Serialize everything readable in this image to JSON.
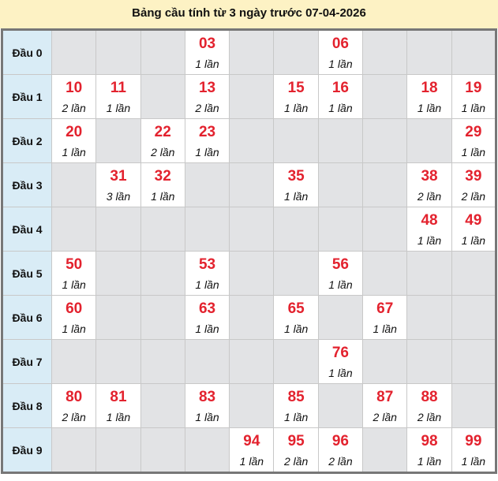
{
  "title": "Bảng cầu tính từ 3 ngày trước 07-04-2026",
  "colors": {
    "number": "#e3222e",
    "label_bg": "#d9ecf6",
    "empty_bg": "#e2e3e5",
    "header_bg": "#fdf2c4"
  },
  "rows": [
    {
      "label": "Đầu 0",
      "cells": [
        null,
        null,
        null,
        {
          "num": "03",
          "count": "1 lần"
        },
        null,
        null,
        {
          "num": "06",
          "count": "1 lần"
        },
        null,
        null,
        null
      ]
    },
    {
      "label": "Đầu 1",
      "cells": [
        {
          "num": "10",
          "count": "2 lần"
        },
        {
          "num": "11",
          "count": "1 lần"
        },
        null,
        {
          "num": "13",
          "count": "2 lần"
        },
        null,
        {
          "num": "15",
          "count": "1 lần"
        },
        {
          "num": "16",
          "count": "1 lần"
        },
        null,
        {
          "num": "18",
          "count": "1 lần"
        },
        {
          "num": "19",
          "count": "1 lần"
        }
      ]
    },
    {
      "label": "Đầu 2",
      "cells": [
        {
          "num": "20",
          "count": "1 lần"
        },
        null,
        {
          "num": "22",
          "count": "2 lần"
        },
        {
          "num": "23",
          "count": "1 lần"
        },
        null,
        null,
        null,
        null,
        null,
        {
          "num": "29",
          "count": "1 lần"
        }
      ]
    },
    {
      "label": "Đầu 3",
      "cells": [
        null,
        {
          "num": "31",
          "count": "3 lần"
        },
        {
          "num": "32",
          "count": "1 lần"
        },
        null,
        null,
        {
          "num": "35",
          "count": "1 lần"
        },
        null,
        null,
        {
          "num": "38",
          "count": "2 lần"
        },
        {
          "num": "39",
          "count": "2 lần"
        }
      ]
    },
    {
      "label": "Đầu 4",
      "cells": [
        null,
        null,
        null,
        null,
        null,
        null,
        null,
        null,
        {
          "num": "48",
          "count": "1 lần"
        },
        {
          "num": "49",
          "count": "1 lần"
        }
      ]
    },
    {
      "label": "Đầu 5",
      "cells": [
        {
          "num": "50",
          "count": "1 lần"
        },
        null,
        null,
        {
          "num": "53",
          "count": "1 lần"
        },
        null,
        null,
        {
          "num": "56",
          "count": "1 lần"
        },
        null,
        null,
        null
      ]
    },
    {
      "label": "Đầu 6",
      "cells": [
        {
          "num": "60",
          "count": "1 lần"
        },
        null,
        null,
        {
          "num": "63",
          "count": "1 lần"
        },
        null,
        {
          "num": "65",
          "count": "1 lần"
        },
        null,
        {
          "num": "67",
          "count": "1 lần"
        },
        null,
        null
      ]
    },
    {
      "label": "Đầu 7",
      "cells": [
        null,
        null,
        null,
        null,
        null,
        null,
        {
          "num": "76",
          "count": "1 lần"
        },
        null,
        null,
        null
      ]
    },
    {
      "label": "Đầu 8",
      "cells": [
        {
          "num": "80",
          "count": "2 lần"
        },
        {
          "num": "81",
          "count": "1 lần"
        },
        null,
        {
          "num": "83",
          "count": "1 lần"
        },
        null,
        {
          "num": "85",
          "count": "1 lần"
        },
        null,
        {
          "num": "87",
          "count": "2 lần"
        },
        {
          "num": "88",
          "count": "2 lần"
        },
        null
      ]
    },
    {
      "label": "Đầu 9",
      "cells": [
        null,
        null,
        null,
        null,
        {
          "num": "94",
          "count": "1 lần"
        },
        {
          "num": "95",
          "count": "2 lần"
        },
        {
          "num": "96",
          "count": "2 lần"
        },
        null,
        {
          "num": "98",
          "count": "1 lần"
        },
        {
          "num": "99",
          "count": "1 lần"
        }
      ]
    }
  ]
}
